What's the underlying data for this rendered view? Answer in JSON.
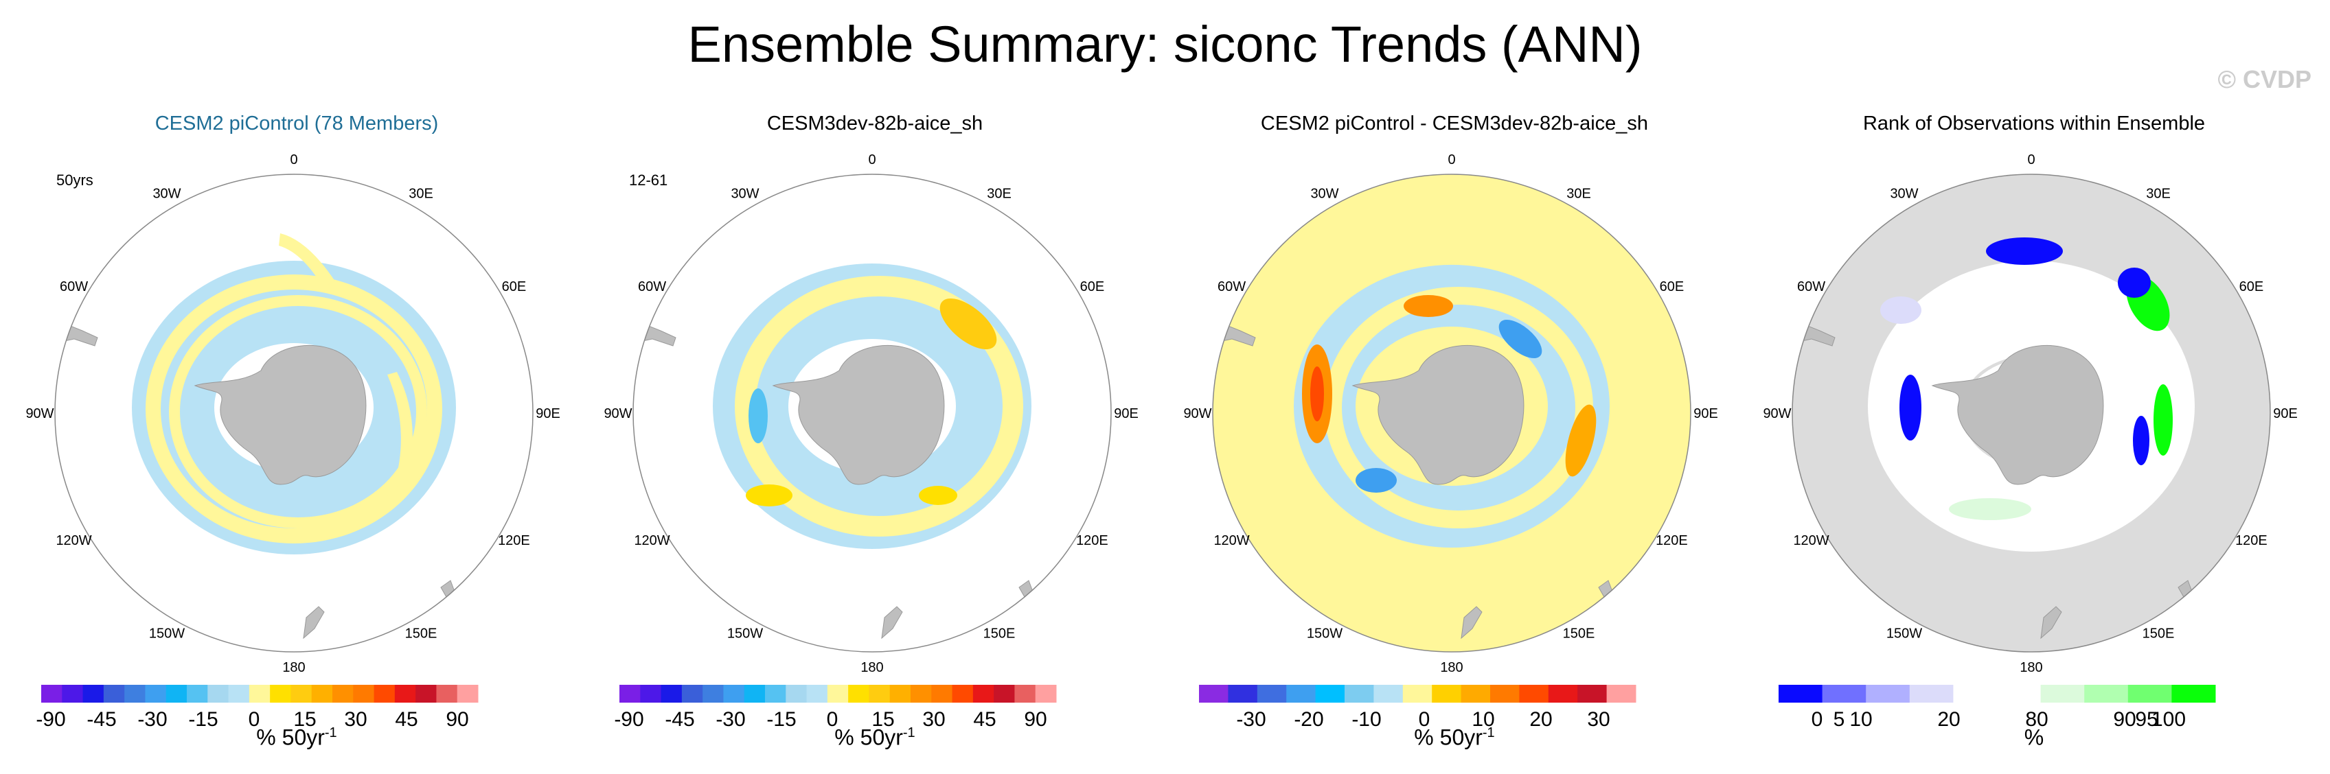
{
  "title": "Ensemble Summary: siconc Trends (ANN)",
  "watermark": "© CVDP",
  "panels": [
    {
      "title": "CESM2 piControl (78 Members)",
      "title_color": "#1f6e96",
      "note": "50yrs",
      "colorbar_labels": [
        "-90",
        "-45",
        "-30",
        "-15",
        "0",
        "15",
        "30",
        "45",
        "90"
      ],
      "units_base": "% 50yr",
      "units_exp": "-1"
    },
    {
      "title": "CESM3dev-82b-aice_sh",
      "title_color": "#000000",
      "note": "12-61",
      "colorbar_labels": [
        "-90",
        "-45",
        "-30",
        "-15",
        "0",
        "15",
        "30",
        "45",
        "90"
      ],
      "units_base": "% 50yr",
      "units_exp": "-1"
    },
    {
      "title": "CESM2 piControl - CESM3dev-82b-aice_sh",
      "title_color": "#000000",
      "note": "",
      "colorbar_labels": [
        "-30",
        "-20",
        "-10",
        "0",
        "10",
        "20",
        "30"
      ],
      "units_base": "% 50yr",
      "units_exp": "-1"
    },
    {
      "title": "Rank of Observations within Ensemble",
      "title_color": "#000000",
      "note": "",
      "colorbar_labels": [
        "0",
        "5",
        "10",
        "20",
        "80",
        "90",
        "95",
        "100"
      ],
      "units_base": "%",
      "units_exp": ""
    }
  ],
  "longitude_labels": {
    "0": "0",
    "30E": "30E",
    "60E": "60E",
    "90E": "90E",
    "120E": "120E",
    "150E": "150E",
    "180": "180",
    "150W": "150W",
    "120W": "120W",
    "90W": "90W",
    "60W": "60W",
    "30W": "30W"
  },
  "colors": {
    "land": "#bebebe",
    "trend_scale": [
      "#7a1fe6",
      "#4d18e8",
      "#1a1ae8",
      "#3a5fd9",
      "#3e7fe0",
      "#3e9ff0",
      "#10b4f4",
      "#55c2f2",
      "#a6d8f0",
      "#b8e2f5",
      "#fff79a",
      "#ffe000",
      "#ffcc10",
      "#ffb000",
      "#ff9000",
      "#ff7a00",
      "#ff4a00",
      "#e81818",
      "#c81428",
      "#e86060",
      "#ffa0a0"
    ],
    "diff_scale": [
      "#8a2be2",
      "#3030e0",
      "#3f6ee0",
      "#3e9ff0",
      "#00bfff",
      "#7dccf0",
      "#b8e2f5",
      "#fff79a",
      "#ffd000",
      "#ffaa00",
      "#ff7a00",
      "#ff4a00",
      "#e81818",
      "#c81428",
      "#ffa0a0"
    ],
    "rank_scale": [
      "#0a0aff",
      "#7070ff",
      "#b0b0ff",
      "#dcdcfa",
      "#ffffff",
      "#ffffff",
      "#dcfadc",
      "#b0ffb0",
      "#70ff70",
      "#0aff0a"
    ],
    "ocean_rank": "#dcdcdc",
    "diff_background": "#fff79a"
  }
}
